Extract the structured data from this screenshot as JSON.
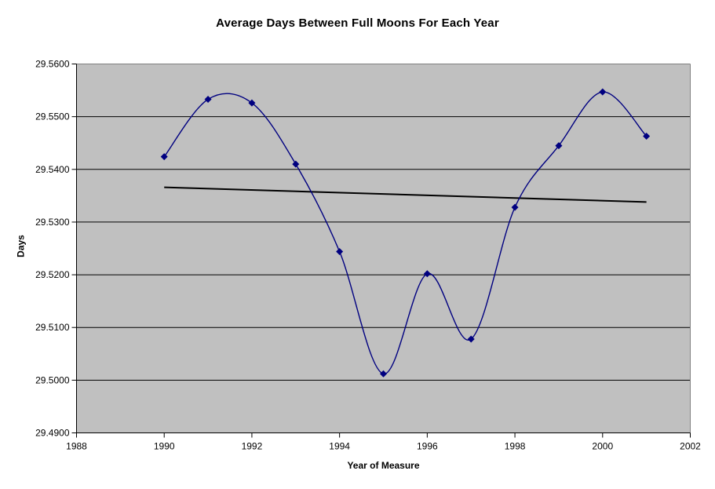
{
  "chart_data": {
    "type": "line",
    "title": "Average Days Between Full Moons For Each Year",
    "xlabel": "Year of Measure",
    "ylabel": "Days",
    "smoothed": true,
    "marker": "diamond",
    "legend": "none",
    "grid": "horizontal-on",
    "x": [
      1990,
      1991,
      1992,
      1993,
      1994,
      1995,
      1996,
      1997,
      1998,
      1999,
      2000,
      2001
    ],
    "values": [
      29.5424,
      29.5533,
      29.5526,
      29.541,
      29.5244,
      29.5012,
      29.5202,
      29.5078,
      29.5328,
      29.5445,
      29.5547,
      29.5463
    ],
    "trendline": {
      "x": [
        1990,
        2001
      ],
      "y": [
        29.5366,
        29.5338
      ]
    },
    "xlim": [
      1988,
      2002
    ],
    "ylim": [
      29.49,
      29.56
    ],
    "x_ticks": [
      1988,
      1990,
      1992,
      1994,
      1996,
      1998,
      2000,
      2002
    ],
    "x_tick_labels": [
      "1988",
      "1990",
      "1992",
      "1994",
      "1996",
      "1998",
      "2000",
      "2002"
    ],
    "y_ticks": [
      29.49,
      29.5,
      29.51,
      29.52,
      29.53,
      29.54,
      29.55,
      29.56
    ],
    "y_tick_labels": [
      "29.4900",
      "29.5000",
      "29.5100",
      "29.5200",
      "29.5300",
      "29.5400",
      "29.5500",
      "29.5600"
    ],
    "colors": {
      "page_bg": "#FFFFFF",
      "plot_bg": "#C0C0C0",
      "series": "#000080",
      "marker": "#000080",
      "trendline": "#000000",
      "gridline": "#000000",
      "axis": "#000000",
      "plot_border": "#808080",
      "text": "#000000"
    }
  }
}
